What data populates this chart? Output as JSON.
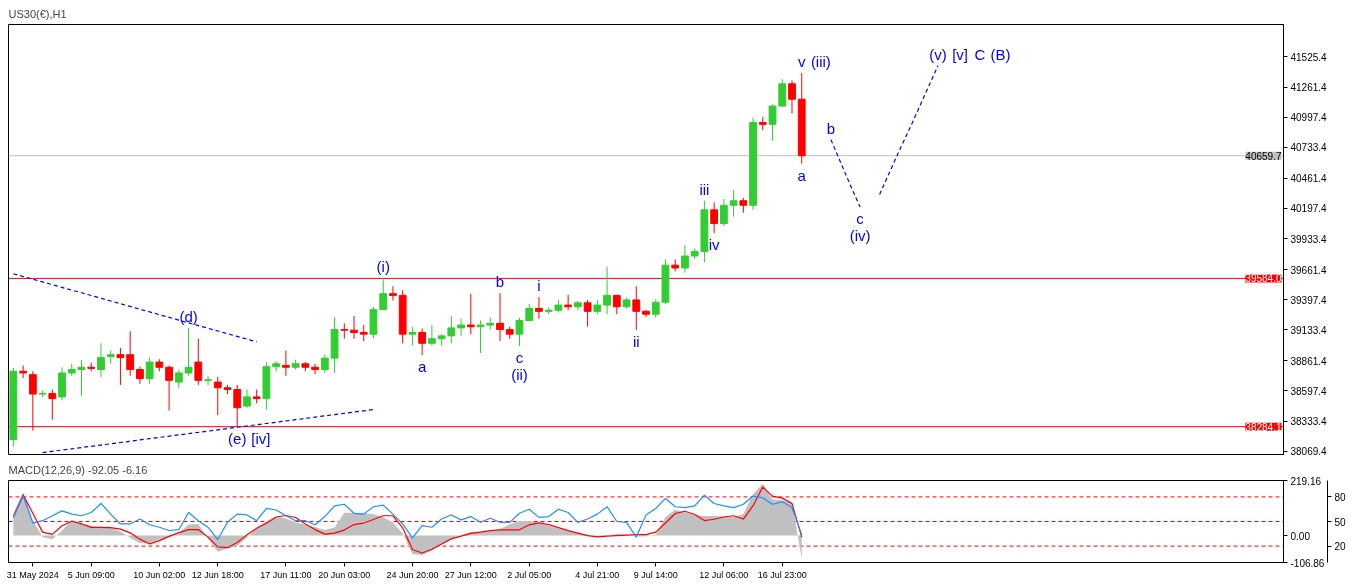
{
  "chart_data": [
    {
      "type": "candlestick",
      "title": "US30(€),H1",
      "ylim": [
        38040,
        41810
      ],
      "tick_labels": "y",
      "categories": [
        null,
        null,
        null,
        null,
        null,
        null,
        null,
        null,
        null,
        null,
        null,
        null,
        null,
        null,
        null,
        null,
        null,
        null,
        null,
        null,
        null,
        null,
        null,
        null,
        null,
        null,
        null,
        null,
        null,
        null,
        null,
        null,
        null,
        null,
        null,
        null,
        null,
        null,
        null,
        null,
        null,
        null,
        null,
        null,
        null,
        null,
        null,
        null,
        null,
        null,
        null,
        null,
        null,
        null,
        null,
        null,
        null,
        null,
        null,
        null,
        null,
        null,
        null,
        null,
        null,
        null,
        null,
        null,
        null,
        null,
        null,
        null,
        null,
        null,
        null,
        null,
        null,
        null,
        null,
        null,
        null,
        null,
        null,
        null,
        null,
        null,
        null,
        null,
        null,
        null,
        null,
        null,
        null,
        null,
        null,
        null,
        null,
        null,
        null,
        null,
        null,
        null,
        null,
        null,
        null,
        null,
        null,
        null,
        null,
        null,
        null,
        null,
        null,
        null,
        null,
        null,
        null,
        null,
        null,
        null,
        null,
        null,
        null,
        null,
        null,
        null,
        null,
        null,
        null,
        null,
        null
      ],
      "yticks": [
        41525.4,
        41261.4,
        40997.4,
        40733.4,
        40461.4,
        40197.4,
        39933.4,
        39661.4,
        39397.4,
        39133.4,
        38861.4,
        38597.4,
        38333.4,
        38069.4
      ],
      "ohlc": [
        [
          38170,
          38800,
          38110,
          38770
        ],
        [
          38770,
          38820,
          38710,
          38755
        ],
        [
          38740,
          38770,
          38250,
          38570
        ],
        [
          38570,
          38600,
          38545,
          38575
        ],
        [
          38575,
          38610,
          38345,
          38530
        ],
        [
          38545,
          38805,
          38515,
          38755
        ],
        [
          38755,
          38835,
          38730,
          38785
        ],
        [
          38785,
          38870,
          38555,
          38805
        ],
        [
          38805,
          38845,
          38770,
          38795
        ],
        [
          38785,
          39015,
          38720,
          38890
        ],
        [
          38900,
          38950,
          38835,
          38915
        ],
        [
          38915,
          38975,
          38650,
          38890
        ],
        [
          38915,
          39120,
          38730,
          38785
        ],
        [
          38785,
          38810,
          38660,
          38705
        ],
        [
          38705,
          38890,
          38660,
          38850
        ],
        [
          38850,
          38875,
          38770,
          38805
        ],
        [
          38805,
          38820,
          38425,
          38690
        ],
        [
          38675,
          38785,
          38625,
          38755
        ],
        [
          38755,
          39150,
          38730,
          38805
        ],
        [
          38850,
          39055,
          38650,
          38690
        ],
        [
          38690,
          38730,
          38650,
          38695
        ],
        [
          38675,
          38720,
          38385,
          38625
        ],
        [
          38625,
          38650,
          38570,
          38610
        ],
        [
          38610,
          38650,
          38280,
          38450
        ],
        [
          38465,
          38610,
          38450,
          38545
        ],
        [
          38545,
          38610,
          38490,
          38530
        ],
        [
          38530,
          38850,
          38430,
          38810
        ],
        [
          38810,
          38860,
          38770,
          38835
        ],
        [
          38820,
          38950,
          38730,
          38805
        ],
        [
          38805,
          38870,
          38785,
          38835
        ],
        [
          38835,
          38850,
          38770,
          38805
        ],
        [
          38805,
          38835,
          38745,
          38785
        ],
        [
          38785,
          38915,
          38755,
          38885
        ],
        [
          38885,
          39245,
          38755,
          39135
        ],
        [
          39135,
          39190,
          39055,
          39130
        ],
        [
          39130,
          39255,
          39055,
          39110
        ],
        [
          39110,
          39175,
          39035,
          39095
        ],
        [
          39095,
          39335,
          39060,
          39310
        ],
        [
          39310,
          39585,
          39310,
          39450
        ],
        [
          39450,
          39515,
          39390,
          39435
        ],
        [
          39435,
          39480,
          39015,
          39095
        ],
        [
          39095,
          39160,
          38995,
          39110
        ],
        [
          39110,
          39145,
          38910,
          39015
        ],
        [
          39015,
          39175,
          38995,
          39055
        ],
        [
          39055,
          39095,
          38995,
          39080
        ],
        [
          39080,
          39255,
          39015,
          39150
        ],
        [
          39150,
          39230,
          39080,
          39175
        ],
        [
          39175,
          39450,
          39095,
          39160
        ],
        [
          39160,
          39215,
          38930,
          39175
        ],
        [
          39175,
          39240,
          39135,
          39190
        ],
        [
          39190,
          39455,
          39035,
          39135
        ],
        [
          39135,
          39160,
          39055,
          39095
        ],
        [
          39095,
          39240,
          38990,
          39215
        ],
        [
          39215,
          39360,
          39215,
          39320
        ],
        [
          39320,
          39420,
          39230,
          39295
        ],
        [
          39295,
          39330,
          39270,
          39305
        ],
        [
          39305,
          39395,
          39285,
          39350
        ],
        [
          39350,
          39440,
          39305,
          39335
        ],
        [
          39335,
          39385,
          39305,
          39370
        ],
        [
          39370,
          39395,
          39160,
          39295
        ],
        [
          39295,
          39395,
          39270,
          39350
        ],
        [
          39350,
          39685,
          39270,
          39435
        ],
        [
          39435,
          39440,
          39270,
          39335
        ],
        [
          39335,
          39415,
          39320,
          39395
        ],
        [
          39395,
          39515,
          39130,
          39295
        ],
        [
          39295,
          39310,
          39245,
          39270
        ],
        [
          39270,
          39400,
          39240,
          39375
        ],
        [
          39375,
          39750,
          39360,
          39700
        ],
        [
          39700,
          39750,
          39645,
          39675
        ],
        [
          39675,
          39875,
          39635,
          39780
        ],
        [
          39780,
          39845,
          39755,
          39820
        ],
        [
          39820,
          40265,
          39725,
          40185
        ],
        [
          40185,
          40250,
          39980,
          40065
        ],
        [
          40065,
          40280,
          40045,
          40225
        ],
        [
          40225,
          40360,
          40125,
          40265
        ],
        [
          40265,
          40290,
          40160,
          40225
        ],
        [
          40225,
          40990,
          40185,
          40950
        ],
        [
          40950,
          41000,
          40885,
          40935
        ],
        [
          40935,
          41110,
          40790,
          41095
        ],
        [
          41095,
          41330,
          41090,
          41290
        ],
        [
          41290,
          41320,
          41030,
          41155
        ],
        [
          41155,
          41385,
          40590,
          40659.7
        ],
        null,
        null,
        null,
        null,
        null,
        null,
        null,
        null,
        null,
        null,
        null,
        null,
        null,
        null,
        null,
        null,
        null,
        null,
        null,
        null,
        null,
        null,
        null,
        null,
        null,
        null,
        null,
        null,
        null,
        null,
        null,
        null,
        null,
        null,
        null,
        null,
        null,
        null,
        null,
        null,
        null,
        null,
        null,
        null,
        null,
        null,
        null,
        null,
        null
      ],
      "colors": [
        "#32cd32",
        "#ff0000",
        "#ff0000",
        "#32cd32",
        "#ff0000",
        "#32cd32",
        "#32cd32",
        "#32cd32",
        "#ff0000",
        "#32cd32",
        "#32cd32",
        "#ff0000",
        "#ff0000",
        "#ff0000",
        "#32cd32",
        "#ff0000",
        "#ff0000",
        "#32cd32",
        "#32cd32",
        "#ff0000",
        "#32cd32",
        "#ff0000",
        "#ff0000",
        "#ff0000",
        "#32cd32",
        "#ff0000",
        "#32cd32",
        "#32cd32",
        "#ff0000",
        "#32cd32",
        "#ff0000",
        "#ff0000",
        "#32cd32",
        "#32cd32",
        "#ff0000",
        "#ff0000",
        "#ff0000",
        "#32cd32",
        "#32cd32",
        "#ff0000",
        "#ff0000",
        "#32cd32",
        "#ff0000",
        "#32cd32",
        "#32cd32",
        "#32cd32",
        "#32cd32",
        "#ff0000",
        "#32cd32",
        "#32cd32",
        "#ff0000",
        "#ff0000",
        "#32cd32",
        "#32cd32",
        "#ff0000",
        "#32cd32",
        "#32cd32",
        "#ff0000",
        "#32cd32",
        "#ff0000",
        "#32cd32",
        "#32cd32",
        "#ff0000",
        "#32cd32",
        "#ff0000",
        "#ff0000",
        "#32cd32",
        "#32cd32",
        "#ff0000",
        "#32cd32",
        "#32cd32",
        "#32cd32",
        "#ff0000",
        "#32cd32",
        "#32cd32",
        "#ff0000",
        "#32cd32",
        "#ff0000",
        "#32cd32",
        "#32cd32",
        "#ff0000",
        "#ff0000",
        null,
        null,
        null,
        null,
        null,
        null,
        null,
        null,
        null,
        null,
        null,
        null,
        null,
        null,
        null,
        null,
        null,
        null,
        null,
        null,
        null,
        null,
        null,
        null,
        null,
        null,
        null,
        null,
        null,
        null,
        null,
        null,
        null,
        null,
        null,
        null,
        null,
        null,
        null,
        null,
        null,
        null,
        null,
        null,
        null,
        null,
        null,
        null,
        null
      ],
      "series": [
        {
          "type": "line",
          "color": "#0000ff",
          "line_style": "dashed",
          "values": [
            39625,
            39601,
            39577,
            39553,
            39529,
            39505,
            39481,
            39458,
            39434,
            39410,
            39386,
            39362,
            39338,
            39314,
            39290,
            39266,
            39242,
            39218,
            39194,
            39170,
            39147,
            39123,
            39099,
            39075,
            39051,
            39027,
            null,
            null,
            null,
            null,
            null,
            null,
            null,
            null,
            null,
            null,
            null,
            null,
            null,
            null,
            null,
            null,
            null,
            null,
            null,
            null,
            null,
            null,
            null,
            null,
            null,
            null,
            null,
            null,
            null,
            null,
            null,
            null,
            null,
            null,
            null,
            null,
            null,
            null,
            null,
            null,
            null,
            null,
            null,
            null,
            null,
            null,
            null,
            null,
            null,
            null,
            null,
            null,
            null,
            null,
            null,
            null,
            null,
            null,
            null,
            null,
            null,
            null,
            null,
            null,
            null,
            null,
            null,
            null,
            null,
            null,
            null,
            null,
            null,
            null,
            null,
            null,
            null,
            null,
            null,
            null,
            null,
            null,
            null,
            null,
            null,
            null,
            null,
            null,
            null,
            null,
            null,
            null,
            null,
            null,
            null,
            null,
            null,
            null,
            null,
            null,
            null,
            null,
            null,
            null,
            null
          ]
        },
        {
          "type": "line",
          "color": "#0000ff",
          "line_style": "dashed",
          "values": [
            null,
            null,
            null,
            38056,
            38068,
            38079,
            38090,
            38101,
            38112,
            38123,
            38134,
            38145,
            38156,
            38168,
            38179,
            38190,
            38201,
            38212,
            38223,
            38234,
            38245,
            38256,
            38268,
            38279,
            38290,
            38301,
            38312,
            38323,
            38334,
            38345,
            38356,
            38368,
            38379,
            38390,
            38401,
            38412,
            38423,
            38434,
            null,
            null,
            null,
            null,
            null,
            null,
            null,
            null,
            null,
            null,
            null,
            null,
            null,
            null,
            null,
            null,
            null,
            null,
            null,
            null,
            null,
            null,
            null,
            null,
            null,
            null,
            null,
            null,
            null,
            null,
            null,
            null,
            null,
            null,
            null,
            null,
            null,
            null,
            null,
            null,
            null,
            null,
            null,
            null,
            null,
            null,
            null,
            null,
            null,
            null,
            null,
            null,
            null,
            null,
            null,
            null,
            null,
            null,
            null,
            null,
            null,
            null,
            null,
            null,
            null,
            null,
            null,
            null,
            null,
            null,
            null,
            null,
            null,
            null,
            null,
            null,
            null,
            null,
            null,
            null,
            null,
            null,
            null,
            null,
            null,
            null,
            null,
            null,
            null,
            null,
            null,
            null,
            null
          ]
        },
        {
          "type": "line",
          "color": "#0000ff",
          "line_style": "dashed",
          "values": [
            null,
            null,
            null,
            null,
            null,
            null,
            null,
            null,
            null,
            null,
            null,
            null,
            null,
            null,
            null,
            null,
            null,
            null,
            null,
            null,
            null,
            null,
            null,
            null,
            null,
            null,
            null,
            null,
            null,
            null,
            null,
            null,
            null,
            null,
            null,
            null,
            null,
            null,
            null,
            null,
            null,
            null,
            null,
            null,
            null,
            null,
            null,
            null,
            null,
            null,
            null,
            null,
            null,
            null,
            null,
            null,
            null,
            null,
            null,
            null,
            null,
            null,
            null,
            null,
            null,
            null,
            null,
            null,
            null,
            null,
            null,
            null,
            null,
            null,
            null,
            null,
            null,
            null,
            null,
            null,
            null,
            null,
            null,
            null,
            40800,
            40600,
            40400,
            40210,
            null,
            40320,
            40510,
            40700,
            40880,
            41070,
            41260,
            41450,
            null,
            null,
            null,
            null,
            null,
            null,
            null,
            null,
            null,
            null,
            null,
            null,
            null,
            null,
            null,
            null,
            null,
            null,
            null,
            null,
            null,
            null,
            null,
            null,
            null,
            null,
            null,
            null,
            null,
            null,
            null,
            null,
            null,
            null,
            null
          ]
        }
      ],
      "ref_lines": [
        {
          "axis": "y",
          "value": 40659.7,
          "label": "40659.7",
          "color": "#c0c0c0"
        },
        {
          "axis": "y",
          "value": 39584.0,
          "label": "39584.0",
          "color": "#ff0000"
        },
        {
          "axis": "y",
          "value": 38284.1,
          "label": "38284.1",
          "color": "#ff0000"
        }
      ],
      "annotations": [
        {
          "text": "(d)",
          "y": 39150
        },
        {
          "text": "(e)",
          "y": 38280
        },
        "[iv]",
        {
          "text": "(i)",
          "y": 39585
        },
        {
          "text": "a",
          "y": 38910
        },
        {
          "text": "b",
          "y": 39455
        },
        {
          "text": "c",
          "y": 38990
        },
        {
          "text": "(ii)",
          "y": 38990
        },
        {
          "text": "i",
          "y": 39420
        },
        {
          "text": "ii",
          "y": 39130
        },
        {
          "text": "iii",
          "y": 40265
        },
        {
          "text": "iv",
          "y": 39980
        },
        {
          "text": "v",
          "y": 41385
        },
        "(iii)",
        {
          "text": "a",
          "y": 40590
        },
        {
          "text": "b",
          "y": 40800
        },
        {
          "text": "c",
          "y": 40210
        },
        {
          "text": "(iv)",
          "y": 40210
        },
        {
          "text": "(v)",
          "y": 41450
        },
        "[v]",
        "C",
        "(B)"
      ]
    },
    {
      "type": "line",
      "title": "MACD(12,26,9) -92.05 -6.16",
      "ylim": [
        -106.86,
        219.16
      ],
      "yticks": [
        219.16,
        {
          "value": 0,
          "label": "0.00"
        },
        -106.86
      ],
      "y2lim": [
        0,
        100
      ],
      "y2ticks": [
        80,
        50,
        20
      ],
      "categories": [
        null,
        null,
        "31 May 2024",
        null,
        null,
        null,
        null,
        null,
        "5 Jun 09:00",
        null,
        null,
        null,
        null,
        null,
        null,
        "10 Jun 02:00",
        null,
        null,
        null,
        null,
        null,
        "12 Jun 18:00",
        null,
        null,
        null,
        null,
        null,
        null,
        "17 Jun 11:00",
        null,
        null,
        null,
        null,
        null,
        "20 Jun 03:00",
        null,
        null,
        null,
        null,
        null,
        null,
        "24 Jun 20:00",
        null,
        null,
        null,
        null,
        null,
        "27 Jun 12:00",
        null,
        null,
        null,
        null,
        null,
        "2 Jul 05:00",
        null,
        null,
        null,
        null,
        null,
        null,
        "4 Jul 21:00",
        null,
        null,
        null,
        null,
        null,
        "9 Jul 14:00",
        null,
        null,
        null,
        null,
        null,
        null,
        "12 Jul 06:00",
        null,
        null,
        null,
        null,
        null,
        "16 Jul 23:00",
        null,
        null,
        null,
        null,
        null,
        null,
        null,
        null,
        null,
        null,
        null,
        null,
        null,
        null,
        null,
        null,
        null,
        null,
        null,
        null,
        null,
        null,
        null,
        null,
        null,
        null,
        null,
        null,
        null,
        null,
        null,
        null,
        null,
        null,
        null,
        null,
        null,
        null,
        null,
        null,
        null,
        null,
        null,
        null,
        null,
        null,
        null,
        null,
        null,
        null,
        null
      ],
      "series": [
        {
          "type": "area",
          "color": "#c0c0c0",
          "values": [
            88,
            172,
            62,
            -6,
            -14,
            20,
            62,
            48,
            38,
            33,
            31,
            16,
            -8,
            -30,
            -29,
            -15,
            -6,
            9,
            44,
            46,
            -11,
            -64,
            -51,
            -40,
            -8,
            31,
            58,
            74,
            68,
            52,
            43,
            34,
            22,
            32,
            91,
            91,
            89,
            86,
            73,
            52,
            8,
            -74,
            -77,
            -59,
            -35,
            -13,
            1,
            14,
            16,
            18,
            26,
            45,
            58,
            58,
            50,
            38,
            28,
            18,
            10,
            3,
            -5,
            -1,
            6,
            3,
            -3,
            -2,
            4,
            74,
            103,
            93,
            81,
            78,
            78,
            76,
            73,
            86,
            164,
            207,
            144,
            141,
            134,
            -92.05,
            null,
            null,
            null,
            null,
            null,
            null,
            null,
            null,
            null,
            null,
            null,
            null,
            null,
            null,
            null,
            null,
            null,
            null,
            null,
            null,
            null,
            null,
            null,
            null,
            null,
            null,
            null,
            null,
            null,
            null,
            null,
            null,
            null,
            null,
            null,
            null,
            null,
            null,
            null,
            null,
            null,
            null,
            null,
            null,
            null,
            null,
            null,
            null,
            null
          ]
        },
        {
          "color": "#ff0000",
          "values": [
            75,
            162,
            89,
            14,
            5,
            39,
            57,
            47,
            33,
            33,
            32,
            26,
            11,
            -14,
            -33,
            -20,
            -3,
            12,
            24,
            24,
            -6,
            -45,
            -48,
            -27,
            3,
            29,
            49,
            74,
            80,
            72,
            46,
            24,
            6,
            10,
            22,
            44,
            50,
            64,
            79,
            79,
            31,
            -55,
            -69,
            -54,
            -33,
            -13,
            -2,
            9,
            14,
            20,
            23,
            23,
            23,
            43,
            51,
            44,
            32,
            20,
            10,
            0,
            -5,
            -2,
            0,
            2,
            4,
            4,
            14,
            50,
            88,
            97,
            84,
            60,
            65,
            74,
            79,
            66,
            119,
            193,
            157,
            149,
            128,
            -6.16,
            null,
            null,
            null,
            null,
            null,
            null,
            null,
            null,
            null,
            null,
            null,
            null,
            null,
            null,
            null,
            null,
            null,
            null,
            null,
            null,
            null,
            null,
            null,
            null,
            null,
            null,
            null,
            null,
            null,
            null,
            null,
            null,
            null,
            null,
            null,
            null,
            null,
            null,
            null,
            null,
            null,
            null,
            null,
            null,
            null,
            null,
            null,
            null,
            null
          ]
        },
        {
          "color": "#1e90ff",
          "axis": "y2",
          "values": [
            55,
            81,
            48,
            51,
            57,
            63,
            59,
            57,
            61,
            72,
            59,
            47,
            47,
            53,
            46,
            43,
            39,
            40,
            61,
            51,
            43,
            28,
            49,
            59,
            58,
            51,
            66,
            64,
            57,
            51,
            51,
            46,
            56,
            69,
            71,
            60,
            59,
            68,
            70,
            59,
            47,
            30,
            45,
            43,
            53,
            58,
            52,
            56,
            49,
            54,
            49,
            49,
            60,
            65,
            55,
            56,
            65,
            61,
            49,
            53,
            59,
            68,
            50,
            49,
            31,
            58,
            66,
            78,
            68,
            67,
            69,
            82,
            72,
            69,
            67,
            71,
            81,
            79,
            71,
            74,
            67,
            34,
            null,
            null,
            null,
            null,
            null,
            null,
            null,
            null,
            null,
            null,
            null,
            null,
            null,
            null,
            null,
            null,
            null,
            null,
            null,
            null,
            null,
            null,
            null,
            null,
            null,
            null,
            null,
            null,
            null,
            null,
            null,
            null,
            null,
            null,
            null,
            null,
            null,
            null,
            null,
            null,
            null,
            null,
            null,
            null,
            null,
            null,
            null,
            null,
            null
          ]
        }
      ],
      "ref_lines": [
        {
          "axis": "y2",
          "value": 80,
          "color": "#ff0000",
          "line_style": "dashed"
        },
        {
          "axis": "y2",
          "value": 50,
          "color": "#ff0000",
          "line_style": "dashed"
        },
        {
          "axis": "y2",
          "value": 20,
          "color": "#ff0000",
          "line_style": "dashed"
        }
      ]
    }
  ]
}
